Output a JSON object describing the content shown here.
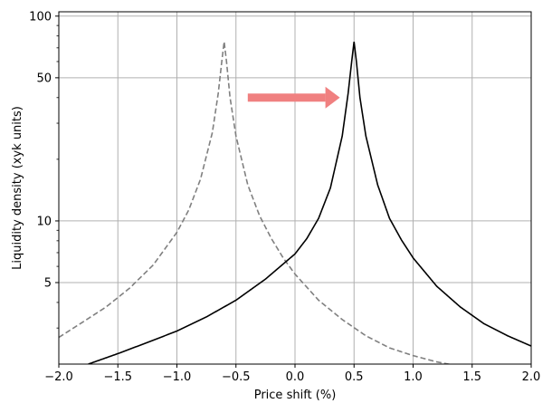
{
  "chart_data": {
    "type": "line",
    "xlabel": "Price shift (%)",
    "ylabel": "Liquidity density (xyk units)",
    "xlim": [
      -2.0,
      2.0
    ],
    "ylim": [
      2.0,
      105
    ],
    "yscale": "log",
    "grid": true,
    "x_ticks": [
      "−2.0",
      "−1.5",
      "−1.0",
      "−0.5",
      "0.0",
      "0.5",
      "1.0",
      "1.5",
      "2.0"
    ],
    "x_tick_values": [
      -2.0,
      -1.5,
      -1.0,
      -0.5,
      0.0,
      0.5,
      1.0,
      1.5,
      2.0
    ],
    "y_ticks": [
      "5",
      "10",
      "50",
      "100"
    ],
    "y_tick_values": [
      5,
      10,
      50,
      100
    ],
    "series": [
      {
        "style": "dashed",
        "color": "#808080",
        "peak_x": -0.6,
        "x": [
          -2.0,
          -1.8,
          -1.6,
          -1.4,
          -1.2,
          -1.0,
          -0.9,
          -0.8,
          -0.7,
          -0.65,
          -0.62,
          -0.6,
          -0.58,
          -0.55,
          -0.5,
          -0.4,
          -0.3,
          -0.2,
          -0.1,
          0.0,
          0.2,
          0.4,
          0.6,
          0.8,
          1.0,
          1.2,
          1.4,
          1.5
        ],
        "values": [
          2.7,
          3.2,
          3.8,
          4.7,
          6.1,
          8.8,
          11.3,
          16.0,
          27.0,
          42.0,
          60.0,
          75.0,
          60.0,
          40.0,
          26.0,
          15.0,
          10.6,
          8.2,
          6.6,
          5.5,
          4.1,
          3.3,
          2.75,
          2.4,
          2.2,
          2.05,
          1.95,
          1.9
        ]
      },
      {
        "style": "solid",
        "color": "#000000",
        "peak_x": 0.5,
        "x": [
          -1.75,
          -1.5,
          -1.25,
          -1.0,
          -0.75,
          -0.5,
          -0.25,
          0.0,
          0.1,
          0.2,
          0.3,
          0.4,
          0.45,
          0.48,
          0.5,
          0.52,
          0.55,
          0.6,
          0.7,
          0.8,
          0.9,
          1.0,
          1.2,
          1.4,
          1.6,
          1.8,
          2.0
        ],
        "values": [
          2.0,
          2.25,
          2.55,
          2.9,
          3.4,
          4.1,
          5.2,
          6.9,
          8.2,
          10.3,
          14.5,
          26.0,
          42.0,
          60.0,
          75.0,
          60.0,
          40.0,
          26.0,
          15.0,
          10.3,
          8.1,
          6.6,
          4.8,
          3.8,
          3.15,
          2.75,
          2.45
        ]
      }
    ],
    "annotations": [
      {
        "type": "arrow",
        "color": "#f08080",
        "from": [
          -0.4,
          40
        ],
        "to": [
          0.38,
          40
        ]
      }
    ]
  }
}
